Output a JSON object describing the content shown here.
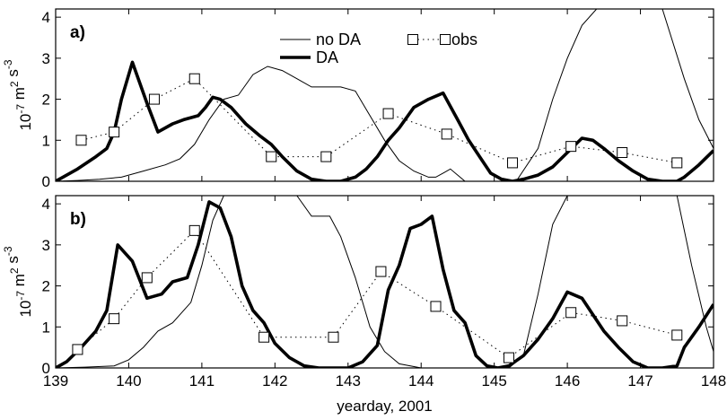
{
  "chart_data": [
    {
      "type": "line",
      "panel_label": "a)",
      "xlim": [
        139,
        148
      ],
      "ylim": [
        0,
        4.2
      ],
      "yticks": [
        0,
        1,
        2,
        3,
        4
      ],
      "ylabel": "10^-7 m^2 s^-3",
      "grid": false,
      "legend_placement": "top-center",
      "series": [
        {
          "name": "no DA",
          "style": "thin-solid",
          "x": [
            139.0,
            139.3,
            139.6,
            139.9,
            140.2,
            140.5,
            140.7,
            140.9,
            141.1,
            141.3,
            141.5,
            141.7,
            141.8,
            141.9,
            142.1,
            142.3,
            142.5,
            142.7,
            142.9,
            143.1,
            143.3,
            143.5,
            143.7,
            143.9,
            144.1,
            144.2,
            144.3,
            144.4,
            144.5,
            144.6,
            144.8,
            145.0,
            145.3,
            145.6,
            145.8,
            146.0,
            146.2,
            146.4,
            146.6,
            146.9,
            147.3,
            147.6,
            147.8,
            148.0
          ],
          "y": [
            0,
            0.02,
            0.05,
            0.1,
            0.25,
            0.4,
            0.55,
            0.9,
            1.5,
            2.0,
            2.1,
            2.6,
            2.7,
            2.8,
            2.7,
            2.5,
            2.3,
            2.3,
            2.3,
            2.2,
            1.6,
            1.0,
            0.5,
            0.25,
            0.1,
            0.1,
            0.2,
            0.3,
            0.15,
            0,
            0,
            0,
            0,
            0.8,
            2.0,
            3.0,
            3.8,
            4.2,
            4.2,
            4.2,
            4.2,
            2.5,
            1.5,
            0.8
          ]
        },
        {
          "name": "DA",
          "style": "thick-solid",
          "x": [
            139.0,
            139.1,
            139.3,
            139.55,
            139.7,
            139.8,
            139.9,
            140.05,
            140.25,
            140.4,
            140.6,
            140.75,
            140.85,
            140.95,
            141.05,
            141.15,
            141.25,
            141.4,
            141.6,
            141.8,
            141.95,
            142.1,
            142.3,
            142.5,
            142.7,
            142.9,
            143.1,
            143.25,
            143.4,
            143.55,
            143.7,
            143.9,
            144.1,
            144.3,
            144.5,
            144.65,
            144.8,
            144.95,
            145.1,
            145.25,
            145.4,
            145.6,
            145.8,
            146.0,
            146.2,
            146.35,
            146.5,
            146.7,
            146.9,
            147.1,
            147.3,
            147.5,
            147.6,
            147.8,
            148.0
          ],
          "y": [
            0,
            0.1,
            0.3,
            0.6,
            0.8,
            1.2,
            2.0,
            2.9,
            1.9,
            1.2,
            1.4,
            1.5,
            1.55,
            1.6,
            1.8,
            2.05,
            2.0,
            1.8,
            1.4,
            1.1,
            0.9,
            0.6,
            0.25,
            0.05,
            0,
            0,
            0.1,
            0.3,
            0.6,
            1.0,
            1.3,
            1.8,
            2.0,
            2.15,
            1.5,
            1.0,
            0.6,
            0.2,
            0.05,
            0,
            0.05,
            0.15,
            0.35,
            0.7,
            1.05,
            1.0,
            0.8,
            0.5,
            0.25,
            0.05,
            0,
            0,
            0.1,
            0.4,
            0.75
          ]
        },
        {
          "name": "obs",
          "style": "dotted-square-markers",
          "x": [
            139.35,
            139.8,
            140.35,
            140.9,
            141.95,
            142.7,
            143.55,
            144.35,
            145.25,
            146.05,
            146.75,
            147.5
          ],
          "y": [
            1.0,
            1.2,
            2.0,
            2.5,
            0.6,
            0.6,
            1.65,
            1.15,
            0.45,
            0.85,
            0.7,
            0.45
          ]
        }
      ]
    },
    {
      "type": "line",
      "panel_label": "b)",
      "xlim": [
        139,
        148
      ],
      "ylim": [
        0,
        4.2
      ],
      "xticks": [
        139,
        140,
        141,
        142,
        143,
        144,
        145,
        146,
        147,
        148
      ],
      "yticks": [
        0,
        1,
        2,
        3,
        4
      ],
      "xlabel": "yearday, 2001",
      "ylabel": "10^-7 m^2 s^-3",
      "grid": false,
      "series": [
        {
          "name": "no DA",
          "style": "thin-solid",
          "x": [
            139.0,
            139.4,
            139.8,
            140.0,
            140.2,
            140.4,
            140.6,
            140.85,
            141.0,
            141.15,
            141.3,
            141.45,
            141.7,
            142.0,
            142.3,
            142.5,
            142.75,
            142.9,
            143.1,
            143.3,
            143.5,
            143.7,
            144.0,
            144.3,
            144.6,
            144.9,
            145.2,
            145.4,
            145.6,
            145.8,
            146.0,
            146.2,
            146.4,
            146.6,
            146.9,
            147.3,
            147.5,
            147.7,
            147.9,
            148.0
          ],
          "y": [
            0,
            0.02,
            0.05,
            0.2,
            0.5,
            0.9,
            1.1,
            1.6,
            2.5,
            3.6,
            4.2,
            4.2,
            4.2,
            4.2,
            4.2,
            3.7,
            3.7,
            3.2,
            2.2,
            1.0,
            0.4,
            0.1,
            0,
            0,
            0,
            0,
            0,
            0.3,
            1.8,
            3.5,
            4.2,
            4.2,
            4.2,
            4.2,
            4.2,
            4.2,
            4.2,
            2.5,
            1.0,
            0.4
          ]
        },
        {
          "name": "DA",
          "style": "thick-solid",
          "x": [
            139.0,
            139.15,
            139.35,
            139.55,
            139.7,
            139.85,
            140.05,
            140.25,
            140.45,
            140.6,
            140.8,
            140.95,
            141.1,
            141.25,
            141.4,
            141.55,
            141.7,
            141.85,
            142.0,
            142.2,
            142.4,
            142.6,
            142.8,
            143.0,
            143.2,
            143.4,
            143.55,
            143.7,
            143.85,
            144.0,
            144.15,
            144.3,
            144.45,
            144.6,
            144.75,
            144.9,
            145.05,
            145.2,
            145.4,
            145.6,
            145.8,
            146.0,
            146.2,
            146.35,
            146.5,
            146.7,
            146.9,
            147.1,
            147.3,
            147.5,
            147.6,
            147.8,
            148.0
          ],
          "y": [
            0,
            0.15,
            0.5,
            0.9,
            1.4,
            3.0,
            2.6,
            1.7,
            1.8,
            2.1,
            2.2,
            3.0,
            4.05,
            3.9,
            3.2,
            2.0,
            1.4,
            1.1,
            0.6,
            0.25,
            0.05,
            0,
            0,
            0,
            0.15,
            0.55,
            1.9,
            2.5,
            3.4,
            3.5,
            3.7,
            2.4,
            1.4,
            1.1,
            0.3,
            0.05,
            0,
            0.05,
            0.3,
            0.7,
            1.2,
            1.85,
            1.7,
            1.3,
            0.9,
            0.5,
            0.15,
            0,
            0,
            0.05,
            0.5,
            1.0,
            1.55
          ]
        },
        {
          "name": "obs",
          "style": "dotted-square-markers",
          "x": [
            139.3,
            139.8,
            140.25,
            140.9,
            141.85,
            142.8,
            143.45,
            144.2,
            145.2,
            146.05,
            146.75,
            147.5
          ],
          "y": [
            0.45,
            1.2,
            2.2,
            3.35,
            0.75,
            0.75,
            2.35,
            1.5,
            0.25,
            1.35,
            1.15,
            0.8
          ]
        }
      ]
    }
  ]
}
